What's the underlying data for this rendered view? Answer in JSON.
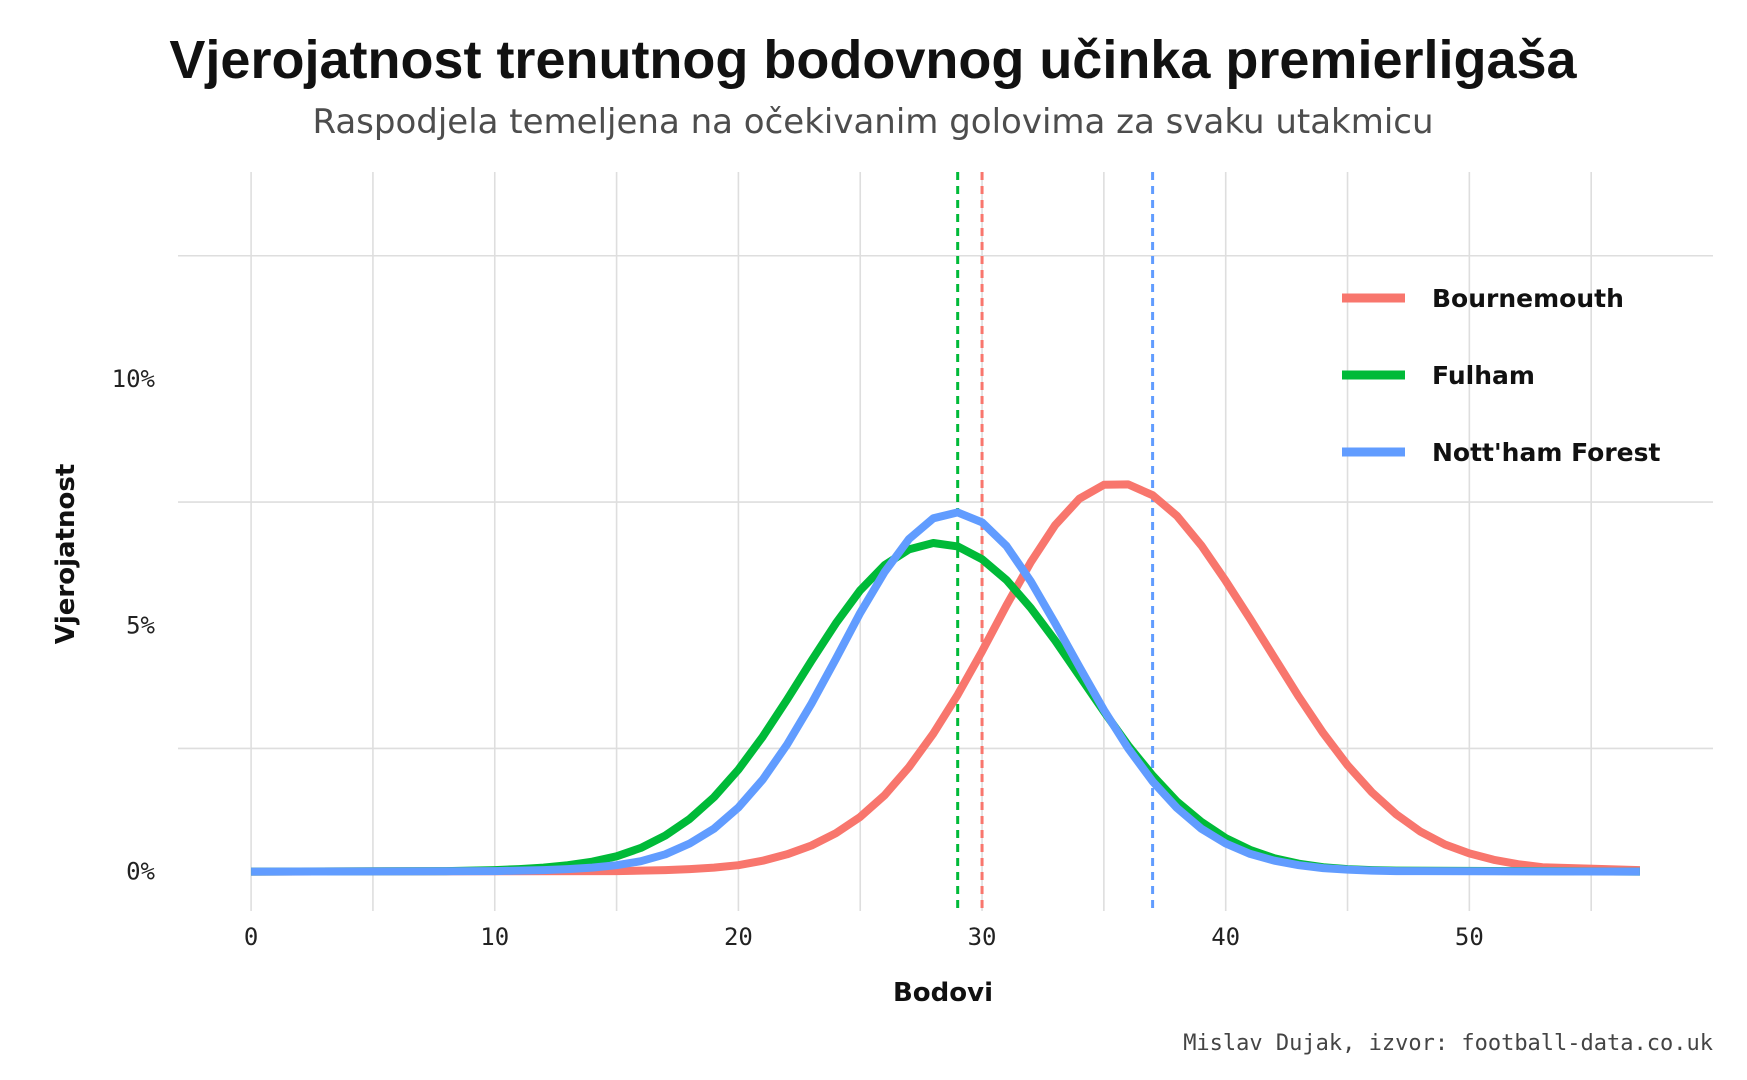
{
  "chart_data": {
    "type": "line",
    "title": "Vjerojatnost trenutnog bodovnog učinka premierligaša",
    "subtitle": "Raspodjela temeljena na očekivanim golovima za svaku utakmicu",
    "xlabel": "Bodovi",
    "ylabel": "Vjerojatnost",
    "caption": "Mislav Dujak, izvor: football-data.co.uk",
    "xlim": [
      -3,
      60
    ],
    "ylim": [
      -0.008,
      0.142
    ],
    "x_ticks": [
      0,
      10,
      20,
      30,
      40,
      50
    ],
    "x_tick_labels": [
      "0",
      "10",
      "20",
      "30",
      "40",
      "50"
    ],
    "y_ticks": [
      0,
      0.05,
      0.1
    ],
    "y_tick_labels": [
      "0%",
      "5%",
      "10%"
    ],
    "grid": true,
    "legend_position": "top-right",
    "series": [
      {
        "name": "Bournemouth",
        "color": "#F8766D",
        "current_points": 30,
        "x": [
          0,
          15,
          16,
          17,
          18,
          19,
          20,
          21,
          22,
          23,
          24,
          25,
          26,
          27,
          28,
          29,
          30,
          31,
          32,
          33,
          34,
          35,
          36,
          37,
          38,
          39,
          40,
          41,
          42,
          43,
          44,
          45,
          46,
          47,
          48,
          49,
          50,
          51,
          52,
          53,
          57
        ],
        "values": [
          0,
          0.0001,
          0.0002,
          0.0003,
          0.0005,
          0.0008,
          0.0013,
          0.0022,
          0.0035,
          0.0053,
          0.0078,
          0.0111,
          0.0155,
          0.0212,
          0.028,
          0.0359,
          0.0447,
          0.054,
          0.0628,
          0.0703,
          0.0757,
          0.0785,
          0.0786,
          0.0764,
          0.0722,
          0.0662,
          0.059,
          0.0513,
          0.0434,
          0.0355,
          0.0281,
          0.0216,
          0.0161,
          0.0116,
          0.0081,
          0.0055,
          0.0037,
          0.0024,
          0.0015,
          0.0009,
          0.0003
        ]
      },
      {
        "name": "Fulham",
        "color": "#00BA38",
        "current_points": 29,
        "x": [
          0,
          8,
          9,
          10,
          11,
          12,
          13,
          14,
          15,
          16,
          17,
          18,
          19,
          20,
          21,
          22,
          23,
          24,
          25,
          26,
          27,
          28,
          29,
          30,
          31,
          32,
          33,
          34,
          35,
          36,
          37,
          38,
          39,
          40,
          41,
          42,
          43,
          44,
          45,
          46,
          47,
          57
        ],
        "values": [
          0,
          0.0001,
          0.0002,
          0.0003,
          0.0005,
          0.0008,
          0.0013,
          0.002,
          0.0031,
          0.0048,
          0.0073,
          0.0107,
          0.0151,
          0.0207,
          0.0274,
          0.0349,
          0.0428,
          0.0504,
          0.0571,
          0.0622,
          0.0654,
          0.0667,
          0.066,
          0.0634,
          0.0592,
          0.0535,
          0.0469,
          0.0397,
          0.0325,
          0.0256,
          0.0195,
          0.0142,
          0.0101,
          0.0068,
          0.0044,
          0.0027,
          0.0016,
          0.0009,
          0.0005,
          0.0003,
          0.0002,
          0
        ]
      },
      {
        "name": "Nott'ham Forest",
        "color": "#619CFF",
        "current_points": 37,
        "x": [
          0,
          10,
          11,
          12,
          13,
          14,
          15,
          16,
          17,
          18,
          19,
          20,
          21,
          22,
          23,
          24,
          25,
          26,
          27,
          28,
          29,
          30,
          31,
          32,
          33,
          34,
          35,
          36,
          37,
          38,
          39,
          40,
          41,
          42,
          43,
          44,
          45,
          46,
          47,
          48,
          57
        ],
        "values": [
          0,
          0.0001,
          0.0002,
          0.0003,
          0.0005,
          0.0008,
          0.0013,
          0.0021,
          0.0035,
          0.0057,
          0.0087,
          0.013,
          0.0187,
          0.0258,
          0.0341,
          0.0432,
          0.0525,
          0.0608,
          0.0675,
          0.0717,
          0.0729,
          0.0709,
          0.0661,
          0.0589,
          0.0504,
          0.0415,
          0.0328,
          0.025,
          0.0183,
          0.0129,
          0.0087,
          0.0057,
          0.0036,
          0.0022,
          0.0013,
          0.0007,
          0.0004,
          0.0002,
          0.0001,
          0.0001,
          0
        ]
      }
    ]
  }
}
